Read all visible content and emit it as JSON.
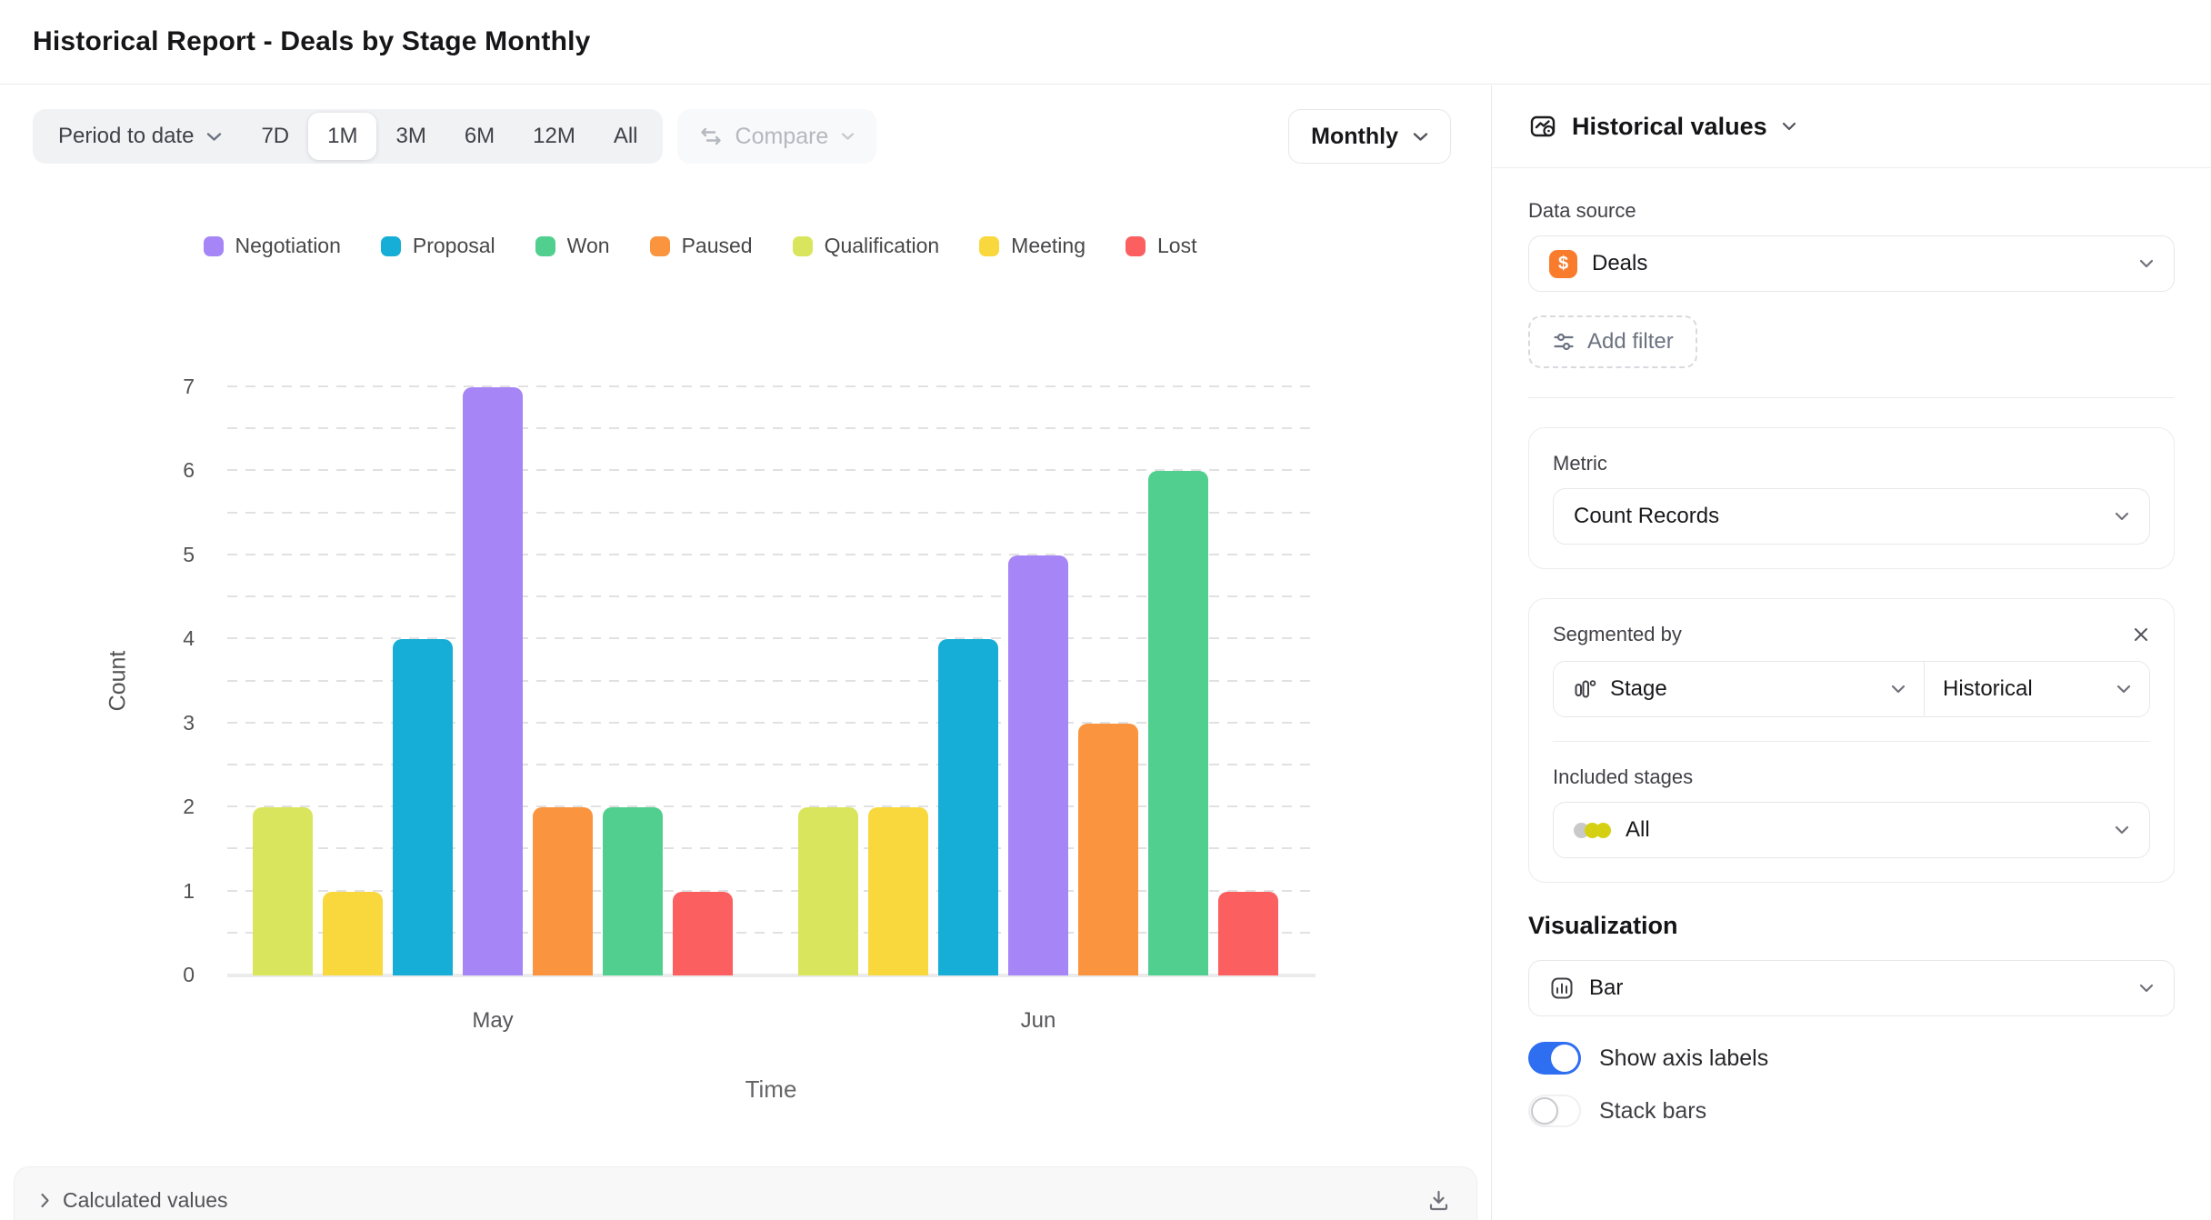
{
  "header": {
    "title": "Historical Report - Deals by Stage Monthly"
  },
  "toolbar": {
    "period_selector": "Period to date",
    "ranges": [
      "7D",
      "1M",
      "3M",
      "6M",
      "12M",
      "All"
    ],
    "selected_range": "1M",
    "compare_label": "Compare",
    "granularity": "Monthly"
  },
  "chart_data": {
    "type": "bar",
    "xlabel": "Time",
    "ylabel": "Count",
    "ylim": [
      0,
      7
    ],
    "y_ticks": [
      0,
      1,
      2,
      3,
      4,
      5,
      6,
      7
    ],
    "gridline_step": 0.5,
    "grid": "dashed-horizontal",
    "legend_position": "top",
    "categories": [
      "May",
      "Jun"
    ],
    "series": [
      {
        "name": "Negotiation",
        "color": "#a685f6",
        "values": [
          7,
          5
        ]
      },
      {
        "name": "Proposal",
        "color": "#16aed6",
        "values": [
          4,
          4
        ]
      },
      {
        "name": "Won",
        "color": "#50cf8e",
        "values": [
          2,
          6
        ]
      },
      {
        "name": "Paused",
        "color": "#fa943e",
        "values": [
          2,
          3
        ]
      },
      {
        "name": "Qualification",
        "color": "#d9e55c",
        "values": [
          2,
          2
        ]
      },
      {
        "name": "Meeting",
        "color": "#f8d83d",
        "values": [
          1,
          2
        ]
      },
      {
        "name": "Lost",
        "color": "#fb5f5f",
        "values": [
          1,
          1
        ]
      }
    ],
    "bar_order": [
      "Qualification",
      "Meeting",
      "Proposal",
      "Negotiation",
      "Paused",
      "Won",
      "Lost"
    ]
  },
  "bottom_bar": {
    "label": "Calculated values",
    "expand_icon": "chevron-right-icon",
    "download_icon": "download-icon"
  },
  "sidebar": {
    "title": "Historical values",
    "title_icon": "historical-chart-icon",
    "data_source": {
      "label": "Data source",
      "value": "Deals",
      "icon": "dollar-badge-icon",
      "icon_color": "#f97c2d",
      "icon_glyph": "$"
    },
    "add_filter_label": "Add filter",
    "metric": {
      "label": "Metric",
      "value": "Count Records"
    },
    "segmented_by": {
      "label": "Segmented by",
      "field_value": "Stage",
      "field_icon": "stage-segments-icon",
      "mode_value": "Historical",
      "included_label": "Included stages",
      "included_value": "All",
      "included_icon": "stage-dots-icon",
      "dot_colors": [
        "#c9c9c9",
        "#d6d013",
        "#d6d013"
      ]
    },
    "visualization": {
      "label": "Visualization",
      "type_value": "Bar",
      "type_icon": "bar-chart-icon",
      "toggles": [
        {
          "label": "Show axis labels",
          "state": "on"
        },
        {
          "label": "Stack bars",
          "state": "off"
        }
      ]
    },
    "accent_blue": "#2e6ef0"
  }
}
